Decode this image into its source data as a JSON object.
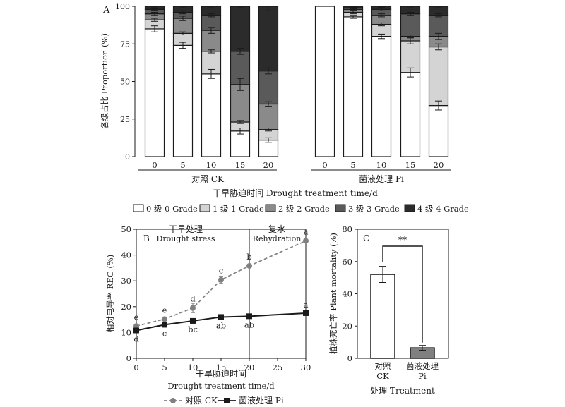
{
  "panel_labels": {
    "a": "A",
    "b": "B",
    "c": "C"
  },
  "chart_data": [
    {
      "type": "bar",
      "stacked": true,
      "panel": "A",
      "ylabel": "各级占比 Proportion (%)",
      "xlabel": "干旱胁迫时间 Drought treatment time/d",
      "ylim": [
        0,
        100
      ],
      "yticks": [
        0,
        25,
        50,
        75,
        100
      ],
      "groups": [
        {
          "name": "对照 CK",
          "categories": [
            "0",
            "5",
            "10",
            "15",
            "20"
          ]
        },
        {
          "name": "菌液处理 Pi",
          "categories": [
            "0",
            "5",
            "10",
            "15",
            "20"
          ]
        }
      ],
      "legend_position": "bottom",
      "series": [
        {
          "name": "0 级 0 Grade",
          "color": "#ffffff",
          "values": [
            85,
            74,
            55,
            17,
            11,
            100,
            93,
            80,
            56,
            34
          ],
          "errors": [
            2,
            2,
            3,
            2,
            1.5,
            0,
            1,
            1.5,
            3,
            3
          ]
        },
        {
          "name": "1 级 1 Grade",
          "color": "#d4d4d4",
          "values": [
            6,
            8,
            15,
            6,
            7,
            0,
            3,
            8,
            21,
            39
          ],
          "errors": [
            1,
            1,
            1,
            1,
            1,
            0,
            1,
            1,
            2,
            2
          ]
        },
        {
          "name": "2 级 2 Grade",
          "color": "#8a8a8a",
          "values": [
            4,
            10,
            14,
            25,
            17,
            0,
            2,
            6,
            3,
            7
          ],
          "errors": [
            1,
            1.5,
            2,
            4,
            1.5,
            0,
            0.5,
            1,
            1,
            2
          ]
        },
        {
          "name": "3 级 3 Grade",
          "color": "#5a5a5a",
          "values": [
            3,
            4,
            10,
            22,
            22,
            0,
            1,
            4,
            15,
            14
          ],
          "errors": [
            0.5,
            1,
            1,
            2,
            2,
            0,
            0.5,
            1,
            1,
            1
          ]
        },
        {
          "name": "4 级 4 Grade",
          "color": "#2b2b2b",
          "values": [
            2,
            4,
            6,
            30,
            43,
            0,
            1,
            2,
            5,
            6
          ],
          "errors": [
            0.5,
            1,
            1,
            1,
            3,
            0,
            0.5,
            0.5,
            1,
            1
          ]
        }
      ]
    },
    {
      "type": "line",
      "panel": "B",
      "ylabel": "相对电导率 REC (%)",
      "xlabel_cn": "干旱胁迫时间",
      "xlabel_en": "Drought treatment time/d",
      "xlim": [
        0,
        30
      ],
      "ylim": [
        0,
        50
      ],
      "xticks": [
        0,
        5,
        10,
        15,
        20,
        25,
        30
      ],
      "yticks": [
        0,
        10,
        20,
        30,
        40,
        50
      ],
      "phases": [
        {
          "cn": "干旱处理",
          "en": "Drought stress"
        },
        {
          "cn": "复水",
          "en": "Rehydration"
        }
      ],
      "divider_x": 20,
      "legend_position": "bottom",
      "series": [
        {
          "name": "对照 CK",
          "color": "#808080",
          "marker": "circle",
          "dashed": true,
          "x": [
            0,
            5,
            10,
            15,
            20,
            30
          ],
          "y": [
            12.5,
            15.2,
            19.5,
            30.4,
            35.8,
            45.5
          ],
          "errors": [
            0.6,
            0.6,
            1.8,
            1.4,
            0.5,
            0.5
          ],
          "letters": [
            "e",
            "e",
            "d",
            "c",
            "b",
            "a"
          ]
        },
        {
          "name": "菌液处理 Pi",
          "color": "#1a1a1a",
          "marker": "square",
          "dashed": false,
          "x": [
            0,
            5,
            10,
            15,
            20,
            30
          ],
          "y": [
            10.8,
            13.0,
            14.5,
            16.0,
            16.3,
            17.5
          ],
          "errors": [
            0.5,
            0.4,
            0.4,
            0.4,
            0.3,
            0.4
          ],
          "letters": [
            "d",
            "c",
            "bc",
            "ab",
            "ab",
            "a"
          ]
        }
      ]
    },
    {
      "type": "bar",
      "panel": "C",
      "ylabel": "植株死亡率 Plant mortality (%)",
      "xlabel": "处理 Treatment",
      "ylim": [
        0,
        80
      ],
      "yticks": [
        0,
        20,
        40,
        60,
        80
      ],
      "categories": [
        {
          "cn": "对照",
          "en": "CK"
        },
        {
          "cn": "菌液处理",
          "en": "Pi"
        }
      ],
      "values": [
        52,
        6.5
      ],
      "errors": [
        5,
        1.5
      ],
      "colors": [
        "#ffffff",
        "#808080"
      ],
      "significance": "**"
    }
  ]
}
